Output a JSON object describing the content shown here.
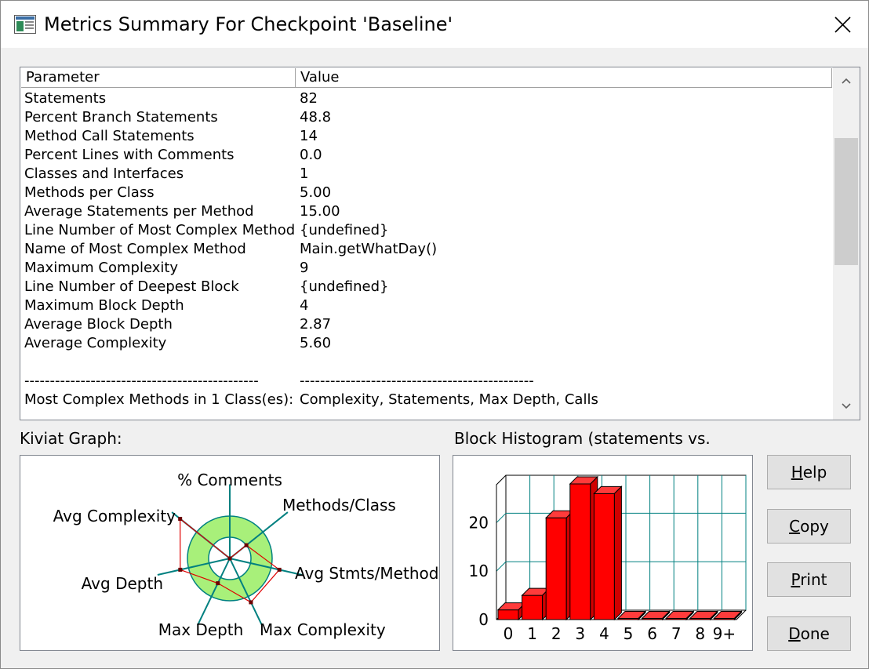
{
  "window": {
    "title": "Metrics Summary For Checkpoint 'Baseline'"
  },
  "table": {
    "headers": {
      "parameter": "Parameter",
      "value": "Value"
    },
    "rows": [
      {
        "parameter": "Statements",
        "value": "82"
      },
      {
        "parameter": "Percent Branch Statements",
        "value": "48.8"
      },
      {
        "parameter": "Method Call Statements",
        "value": "14"
      },
      {
        "parameter": "Percent Lines with Comments",
        "value": "0.0"
      },
      {
        "parameter": "Classes and Interfaces",
        "value": "1"
      },
      {
        "parameter": "Methods per Class",
        "value": "5.00"
      },
      {
        "parameter": "Average Statements per Method",
        "value": "15.00"
      },
      {
        "parameter": "Line Number of Most Complex Method",
        "value": "{undefined}"
      },
      {
        "parameter": "Name of Most Complex Method",
        "value": "Main.getWhatDay()"
      },
      {
        "parameter": "Maximum Complexity",
        "value": "9"
      },
      {
        "parameter": "Line Number of Deepest Block",
        "value": "{undefined}"
      },
      {
        "parameter": "Maximum Block Depth",
        "value": "4"
      },
      {
        "parameter": "Average Block Depth",
        "value": "2.87"
      },
      {
        "parameter": "Average Complexity",
        "value": "5.60"
      },
      {
        "parameter": "",
        "value": ""
      },
      {
        "parameter": "----------------------------------------------",
        "value": "----------------------------------------------"
      },
      {
        "parameter": "Most Complex Methods in 1 Class(es):",
        "value": "Complexity, Statements, Max Depth, Calls"
      }
    ]
  },
  "kiviat": {
    "label": "Kiviat Graph:",
    "axes": [
      "% Comments",
      "Methods/Class",
      "Avg Stmts/Method",
      "Max Complexity",
      "Max Depth",
      "Avg Depth",
      "Avg Complexity"
    ],
    "values": [
      0,
      0.5,
      1.2,
      1.15,
      0.65,
      1.2,
      1.5
    ]
  },
  "histogram": {
    "label": "Block Histogram (statements vs.",
    "chart_data": {
      "type": "bar",
      "categories": [
        "0",
        "1",
        "2",
        "3",
        "4",
        "5",
        "6",
        "7",
        "8",
        "9+"
      ],
      "values": [
        2,
        5,
        21,
        28,
        26,
        0,
        0,
        0,
        0,
        0
      ],
      "ylim": [
        0,
        28
      ],
      "yticks": [
        "0",
        "10",
        "20"
      ],
      "bar_color": "#ff0000"
    }
  },
  "buttons": {
    "help": {
      "accel": "H",
      "rest": "elp"
    },
    "copy": {
      "accel": "C",
      "rest": "opy"
    },
    "print": {
      "accel": "P",
      "rest": "rint"
    },
    "done": {
      "accel": "D",
      "rest": "one"
    }
  }
}
